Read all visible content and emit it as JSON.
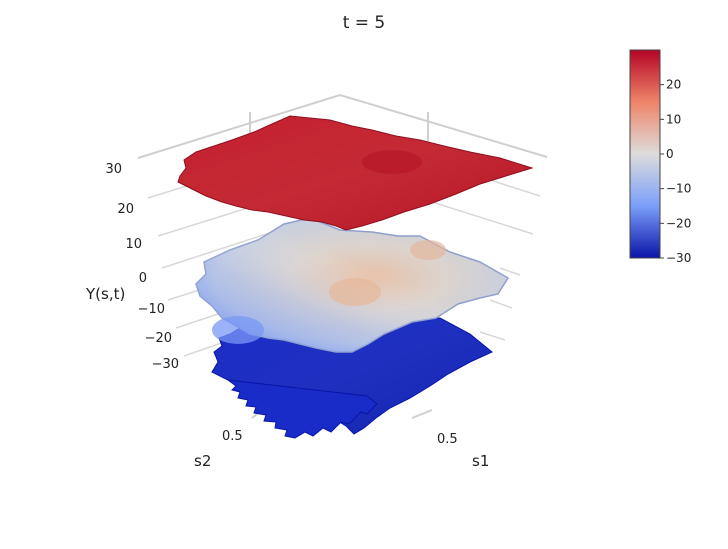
{
  "chart_data": {
    "type": "surface3d",
    "title": "t =  5",
    "xlabel": "s1",
    "ylabel": "s2",
    "zlabel": "Y(s,t)",
    "x_ticks": [
      "0.5"
    ],
    "y_ticks": [
      "0.5"
    ],
    "z_ticks": [
      30,
      20,
      10,
      0,
      -10,
      -20,
      -30
    ],
    "z_tick_labels": [
      "30",
      "20",
      "10",
      "0",
      "−10",
      "−20",
      "−30"
    ],
    "colorscale": "coolwarm",
    "color_range": [
      -30,
      30
    ],
    "colorbar_ticks": [
      20,
      10,
      0,
      -10,
      -20,
      -30
    ],
    "colorbar_tick_labels": [
      "20",
      "10",
      "0",
      "−10",
      "−20",
      "−30"
    ],
    "series": [
      {
        "level": "upper",
        "approx_value": 28
      },
      {
        "level": "middle",
        "approx_value": 0
      },
      {
        "level": "lower",
        "approx_value": -29
      }
    ],
    "grid": true
  }
}
